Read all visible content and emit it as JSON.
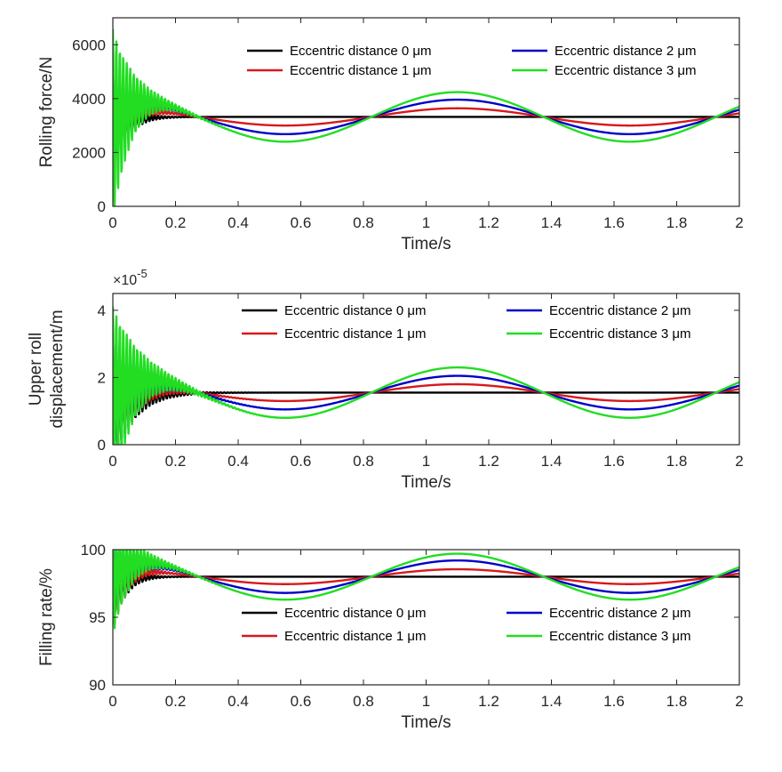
{
  "chart_data": [
    {
      "type": "line",
      "xlabel": "Time/s",
      "ylabel": [
        "Rolling force/N"
      ],
      "xlim": [
        0,
        2
      ],
      "ylim": [
        0,
        7000
      ],
      "xticks": [
        0,
        0.2,
        0.4,
        0.6,
        0.8,
        1,
        1.2,
        1.4,
        1.6,
        1.8,
        2
      ],
      "xtick_labels": [
        "0",
        "0.2",
        "0.4",
        "0.6",
        "0.8",
        "1",
        "1.2",
        "1.4",
        "1.6",
        "1.8",
        "2"
      ],
      "yticks": [
        0,
        2000,
        4000,
        6000
      ],
      "ytick_labels": [
        "0",
        "2000",
        "4000",
        "6000"
      ],
      "y_exponent": "",
      "grid": false,
      "legend_position": "top-right",
      "steady_value": 3320,
      "sine_period": 1.1,
      "sine_peak_time": 1.1,
      "series": [
        {
          "name": "Eccentric distance 0 μm",
          "color": "#000000",
          "amplitude": 0,
          "transient_amplitude": 1600,
          "transient_decay": 0.045
        },
        {
          "name": "Eccentric distance 1 μm",
          "color": "#d7191c",
          "amplitude": 320,
          "transient_amplitude": 1700,
          "transient_decay": 0.05
        },
        {
          "name": "Eccentric distance 2 μm",
          "color": "#0000c8",
          "amplitude": 640,
          "transient_amplitude": 1800,
          "transient_decay": 0.055
        },
        {
          "name": "Eccentric distance 3 μm",
          "color": "#22dd22",
          "amplitude": 920,
          "transient_amplitude": 3600,
          "transient_decay": 0.06
        }
      ]
    },
    {
      "type": "line",
      "xlabel": "Time/s",
      "ylabel": [
        "Upper roll",
        "displacement/m"
      ],
      "xlim": [
        0,
        2
      ],
      "ylim": [
        0,
        4.5
      ],
      "xticks": [
        0,
        0.2,
        0.4,
        0.6,
        0.8,
        1,
        1.2,
        1.4,
        1.6,
        1.8,
        2
      ],
      "xtick_labels": [
        "0",
        "0.2",
        "0.4",
        "0.6",
        "0.8",
        "1",
        "1.2",
        "1.4",
        "1.6",
        "1.8",
        "2"
      ],
      "yticks": [
        0,
        2,
        4
      ],
      "ytick_labels": [
        "0",
        "2",
        "4"
      ],
      "y_exponent": "×10",
      "y_exponent_power": "-5",
      "grid": false,
      "legend_position": "top-right",
      "steady_value": 1.55,
      "sine_period": 1.1,
      "sine_peak_time": 1.1,
      "series": [
        {
          "name": "Eccentric distance 0 μm",
          "color": "#000000",
          "amplitude": 0,
          "transient_amplitude": 1.6,
          "transient_decay": 0.07
        },
        {
          "name": "Eccentric distance 1 μm",
          "color": "#d7191c",
          "amplitude": 0.25,
          "transient_amplitude": 1.8,
          "transient_decay": 0.07
        },
        {
          "name": "Eccentric distance 2 μm",
          "color": "#0000c8",
          "amplitude": 0.5,
          "transient_amplitude": 2.2,
          "transient_decay": 0.07
        },
        {
          "name": "Eccentric distance 3 μm",
          "color": "#22dd22",
          "amplitude": 0.75,
          "transient_amplitude": 2.8,
          "transient_decay": 0.075
        }
      ]
    },
    {
      "type": "line",
      "xlabel": "Time/s",
      "ylabel": [
        "Filling rate/%"
      ],
      "xlim": [
        0,
        2
      ],
      "ylim": [
        90,
        100
      ],
      "xticks": [
        0,
        0.2,
        0.4,
        0.6,
        0.8,
        1,
        1.2,
        1.4,
        1.6,
        1.8,
        2
      ],
      "xtick_labels": [
        "0",
        "0.2",
        "0.4",
        "0.6",
        "0.8",
        "1",
        "1.2",
        "1.4",
        "1.6",
        "1.8",
        "2"
      ],
      "yticks": [
        90,
        95,
        100
      ],
      "ytick_labels": [
        "90",
        "95",
        "100"
      ],
      "y_exponent": "",
      "grid": false,
      "legend_position": "bottom-right",
      "steady_value": 98.0,
      "sine_period": 1.1,
      "sine_peak_time": 1.1,
      "series": [
        {
          "name": "Eccentric distance 0 μm",
          "color": "#000000",
          "amplitude": 0,
          "transient_amplitude": 3.0,
          "transient_decay": 0.04
        },
        {
          "name": "Eccentric distance 1 μm",
          "color": "#d7191c",
          "amplitude": 0.55,
          "transient_amplitude": 3.4,
          "transient_decay": 0.045
        },
        {
          "name": "Eccentric distance 2 μm",
          "color": "#0000c8",
          "amplitude": 1.2,
          "transient_amplitude": 3.6,
          "transient_decay": 0.05
        },
        {
          "name": "Eccentric distance 3 μm",
          "color": "#22dd22",
          "amplitude": 1.7,
          "transient_amplitude": 4.5,
          "transient_decay": 0.06
        }
      ]
    }
  ]
}
